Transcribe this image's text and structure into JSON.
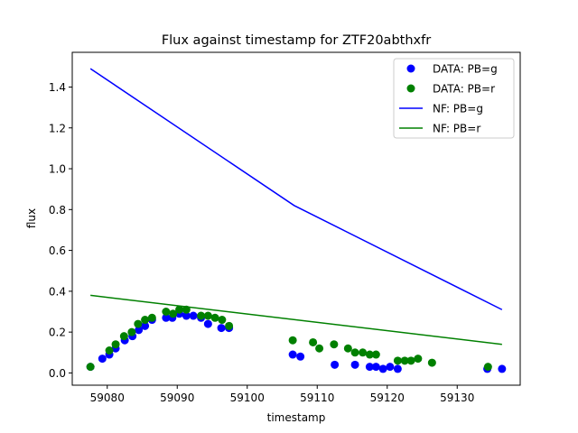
{
  "chart_data": {
    "type": "scatter",
    "title": "Flux against timestamp for ZTF20abthxfr",
    "xlabel": "timestamp",
    "ylabel": "flux",
    "xlim": [
      59075,
      59139
    ],
    "ylim": [
      -0.06,
      1.57
    ],
    "x_ticks": [
      59080,
      59090,
      59100,
      59110,
      59120,
      59130
    ],
    "y_ticks": [
      0.0,
      0.2,
      0.4,
      0.6,
      0.8,
      1.0,
      1.2,
      1.4
    ],
    "y_tick_labels": [
      "0.0",
      "0.2",
      "0.4",
      "0.6",
      "0.8",
      "1.0",
      "1.2",
      "1.4"
    ],
    "grid": false,
    "legend_position": "top-right",
    "colors": {
      "g": "#0000ff",
      "r": "#008000"
    },
    "series": [
      {
        "name": "DATA: PB=g",
        "kind": "scatter",
        "color": "#0000ff",
        "x": [
          59077.6,
          59079.3,
          59080.3,
          59081.2,
          59082.5,
          59083.6,
          59084.5,
          59085.4,
          59086.4,
          59088.4,
          59089.3,
          59090.3,
          59091.3,
          59092.3,
          59093.4,
          59094.4,
          59096.3,
          59097.4,
          59106.5,
          59107.6,
          59112.5,
          59115.4,
          59117.5,
          59118.4,
          59119.4,
          59120.4,
          59121.5,
          59134.3,
          59136.4
        ],
        "y": [
          0.03,
          0.07,
          0.09,
          0.12,
          0.16,
          0.18,
          0.21,
          0.23,
          0.26,
          0.27,
          0.27,
          0.29,
          0.28,
          0.28,
          0.27,
          0.24,
          0.22,
          0.22,
          0.09,
          0.08,
          0.04,
          0.04,
          0.03,
          0.03,
          0.02,
          0.03,
          0.02,
          0.02,
          0.02
        ]
      },
      {
        "name": "DATA: PB=r",
        "kind": "scatter",
        "color": "#008000",
        "x": [
          59077.6,
          59080.3,
          59081.2,
          59082.4,
          59083.5,
          59084.4,
          59085.4,
          59086.4,
          59088.4,
          59089.4,
          59090.3,
          59091.3,
          59093.4,
          59094.4,
          59095.4,
          59096.4,
          59097.4,
          59106.5,
          59109.4,
          59110.3,
          59112.4,
          59114.4,
          59115.4,
          59116.5,
          59117.5,
          59118.4,
          59121.5,
          59122.5,
          59123.4,
          59124.4,
          59126.4,
          59134.4
        ],
        "y": [
          0.03,
          0.11,
          0.14,
          0.18,
          0.2,
          0.24,
          0.26,
          0.27,
          0.3,
          0.29,
          0.31,
          0.31,
          0.28,
          0.28,
          0.27,
          0.26,
          0.23,
          0.16,
          0.15,
          0.12,
          0.14,
          0.12,
          0.1,
          0.1,
          0.09,
          0.09,
          0.06,
          0.06,
          0.06,
          0.07,
          0.05,
          0.03
        ]
      },
      {
        "name": "NF: PB=g",
        "kind": "line",
        "color": "#0000ff",
        "x": [
          59077.6,
          59106.7,
          59136.4
        ],
        "y": [
          1.49,
          0.82,
          0.31
        ]
      },
      {
        "name": "NF: PB=r",
        "kind": "line",
        "color": "#008000",
        "x": [
          59077.6,
          59136.4
        ],
        "y": [
          0.38,
          0.14
        ]
      }
    ]
  }
}
